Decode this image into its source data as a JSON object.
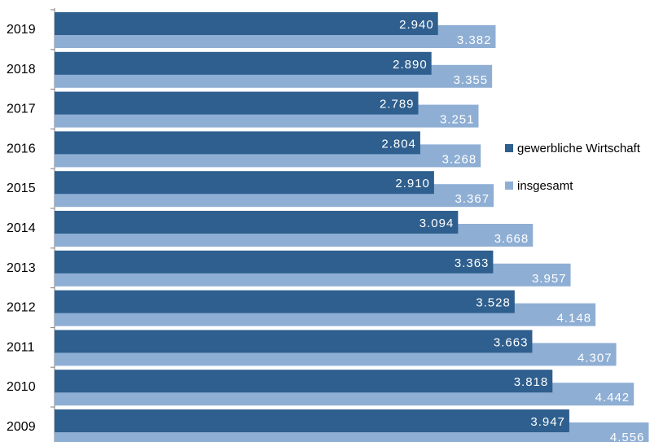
{
  "chart_data": {
    "type": "bar",
    "orientation": "horizontal",
    "categories": [
      "2019",
      "2018",
      "2017",
      "2016",
      "2015",
      "2014",
      "2013",
      "2012",
      "2011",
      "2010",
      "2009"
    ],
    "series": [
      {
        "name": "gewerbliche Wirtschaft",
        "color": "#2e5f8e",
        "values": [
          2940,
          2890,
          2789,
          2804,
          2910,
          3094,
          3363,
          3528,
          3663,
          3818,
          3947
        ],
        "labels": [
          "2.940",
          "2.890",
          "2.789",
          "2.804",
          "2.910",
          "3.094",
          "3.363",
          "3.528",
          "3.663",
          "3.818",
          "3.947"
        ]
      },
      {
        "name": "insgesamt",
        "color": "#8eaed4",
        "values": [
          3382,
          3355,
          3251,
          3268,
          3367,
          3668,
          3957,
          4148,
          4307,
          4442,
          4556
        ],
        "labels": [
          "3.382",
          "3.355",
          "3.251",
          "3.268",
          "3.367",
          "3.668",
          "3.957",
          "4.148",
          "4.307",
          "4.442",
          "4.556"
        ]
      }
    ],
    "xlim": [
      0,
      4556
    ],
    "legend": "right",
    "grid": false
  }
}
